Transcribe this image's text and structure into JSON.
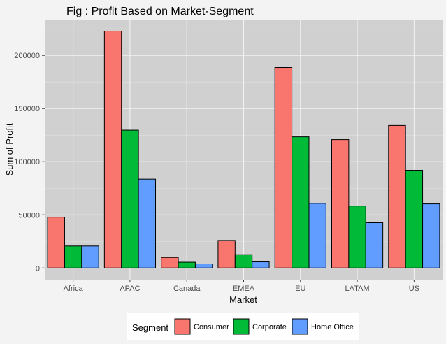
{
  "chart_data": {
    "type": "bar",
    "title": "Fig : Profit Based on Market-Segment",
    "xlabel": "Market",
    "ylabel": "Sum of Profit",
    "categories": [
      "Africa",
      "APAC",
      "Canada",
      "EMEA",
      "EU",
      "LATAM",
      "US"
    ],
    "series": [
      {
        "name": "Consumer",
        "color": "#F8766D",
        "values": [
          47800,
          222800,
          9900,
          25900,
          188600,
          120800,
          134100
        ]
      },
      {
        "name": "Corporate",
        "color": "#00BA38",
        "values": [
          20700,
          129700,
          5400,
          12500,
          123400,
          58300,
          91900
        ]
      },
      {
        "name": "Home Office",
        "color": "#619CFF",
        "values": [
          20700,
          83600,
          3800,
          5800,
          60800,
          42600,
          60300
        ]
      }
    ],
    "yticks": [
      0,
      50000,
      100000,
      150000,
      200000
    ],
    "ytick_labels": [
      "0",
      "50000",
      "100000",
      "150000",
      "200000"
    ],
    "ylim": [
      -11000,
      233000
    ],
    "grid": true,
    "panel_background": "#d0d0d0",
    "legend_title": "Segment",
    "legend_position": "bottom"
  }
}
